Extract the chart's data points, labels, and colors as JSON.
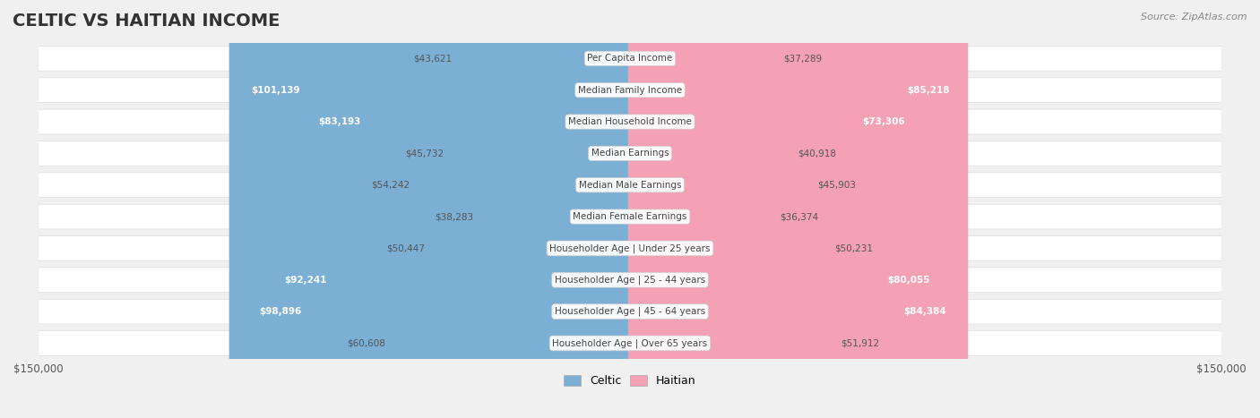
{
  "title": "CELTIC VS HAITIAN INCOME",
  "source": "Source: ZipAtlas.com",
  "categories": [
    "Per Capita Income",
    "Median Family Income",
    "Median Household Income",
    "Median Earnings",
    "Median Male Earnings",
    "Median Female Earnings",
    "Householder Age | Under 25 years",
    "Householder Age | 25 - 44 years",
    "Householder Age | 45 - 64 years",
    "Householder Age | Over 65 years"
  ],
  "celtic_values": [
    43621,
    101139,
    83193,
    45732,
    54242,
    38283,
    50447,
    92241,
    98896,
    60608
  ],
  "haitian_values": [
    37289,
    85218,
    73306,
    40918,
    45903,
    36374,
    50231,
    80055,
    84384,
    51912
  ],
  "celtic_labels": [
    "$43,621",
    "$101,139",
    "$83,193",
    "$45,732",
    "$54,242",
    "$38,283",
    "$50,447",
    "$92,241",
    "$98,896",
    "$60,608"
  ],
  "haitian_labels": [
    "$37,289",
    "$85,218",
    "$73,306",
    "$40,918",
    "$45,903",
    "$36,374",
    "$50,231",
    "$80,055",
    "$84,384",
    "$51,912"
  ],
  "celtic_color": "#7bafd4",
  "celtic_color_dark": "#4a86c8",
  "haitian_color": "#f4a0b5",
  "haitian_color_dark": "#e8547a",
  "celtic_text_threshold": 70000,
  "haitian_text_threshold": 70000,
  "max_value": 150000,
  "background_color": "#f0f0f0",
  "row_bg_color": "#f9f9f9",
  "row_border_color": "#dddddd",
  "title_fontsize": 14,
  "label_fontsize": 8.5,
  "value_fontsize": 8.5
}
